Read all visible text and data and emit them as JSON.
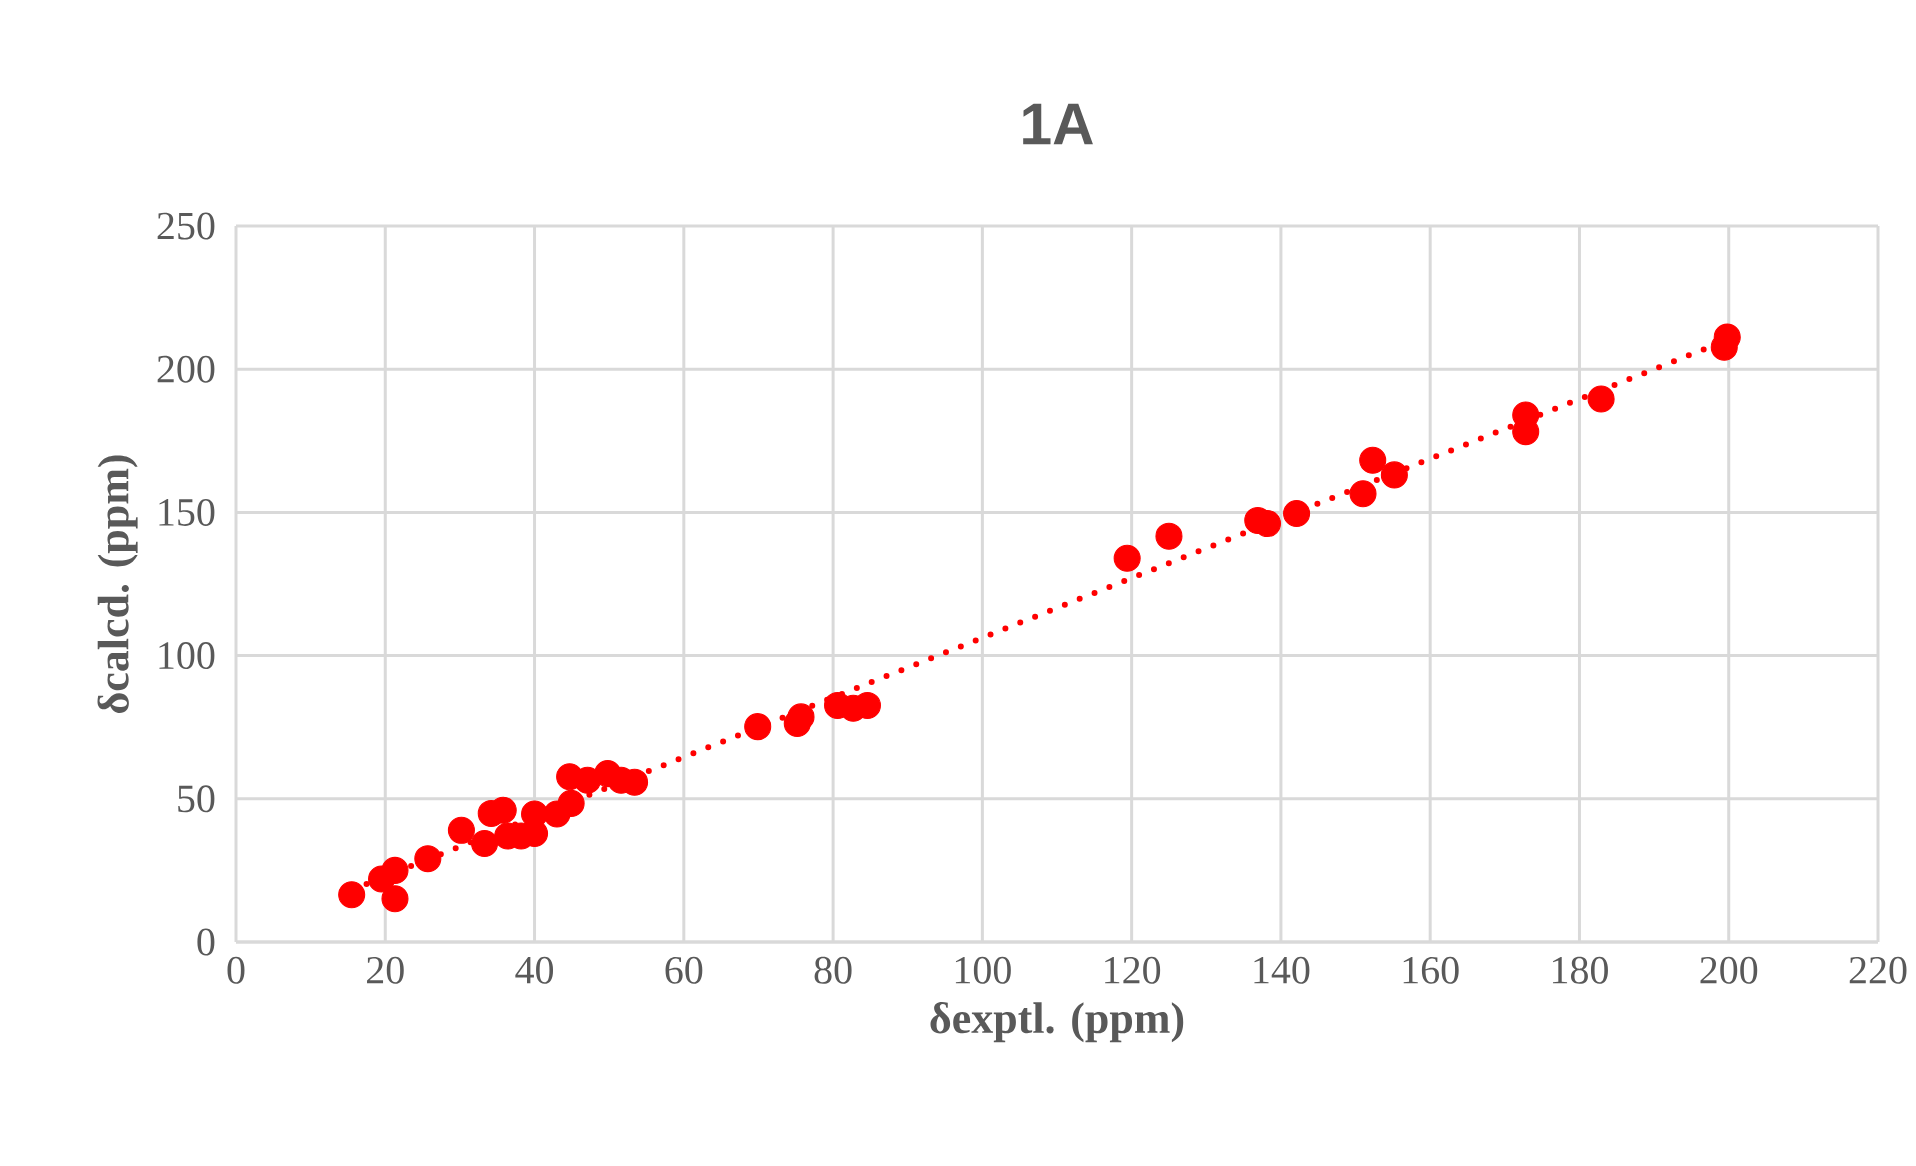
{
  "chart_data": {
    "type": "scatter",
    "title": "1A",
    "xlabel": "δexptl. (ppm)",
    "ylabel": "δcalcd. (ppm)",
    "xlim": [
      0,
      220
    ],
    "ylim": [
      0,
      250
    ],
    "xticks": [
      0,
      20,
      40,
      60,
      80,
      100,
      120,
      140,
      160,
      180,
      200,
      220
    ],
    "yticks": [
      0,
      50,
      100,
      150,
      200,
      250
    ],
    "grid": true,
    "series": [
      {
        "color": "#ff0000",
        "marker": "circle",
        "x": [
          15.5,
          19.5,
          21.3,
          21.3,
          25.7,
          30.2,
          33.3,
          34.2,
          35.8,
          36.4,
          38.2,
          40.0,
          40.0,
          43.0,
          44.9,
          44.7,
          47.1,
          49.8,
          51.6,
          53.4,
          69.9,
          75.7,
          75.2,
          80.6,
          82.7,
          84.6,
          119.4,
          125.0,
          136.9,
          138.2,
          142.1,
          151.0,
          152.3,
          155.2,
          172.8,
          172.8,
          182.9,
          199.8,
          199.4
        ],
        "values": [
          16.5,
          22,
          25,
          15.1,
          29.1,
          39,
          34.4,
          44.9,
          46,
          37,
          37,
          44.7,
          37.9,
          44.7,
          48.4,
          57.7,
          56.5,
          58.8,
          56.5,
          55.8,
          75.2,
          78.6,
          76.3,
          82.6,
          81.6,
          82.6,
          134,
          141.7,
          147.2,
          146.1,
          149.6,
          156.5,
          168.2,
          163.1,
          184,
          178.2,
          189.6,
          211.2,
          207.7
        ]
      },
      {
        "type": "line",
        "color": "#ff0000",
        "line_style": "dotted",
        "marker": "none",
        "x": [
          15.5,
          199.8
        ],
        "values": [
          18.2,
          210.2
        ]
      }
    ]
  }
}
